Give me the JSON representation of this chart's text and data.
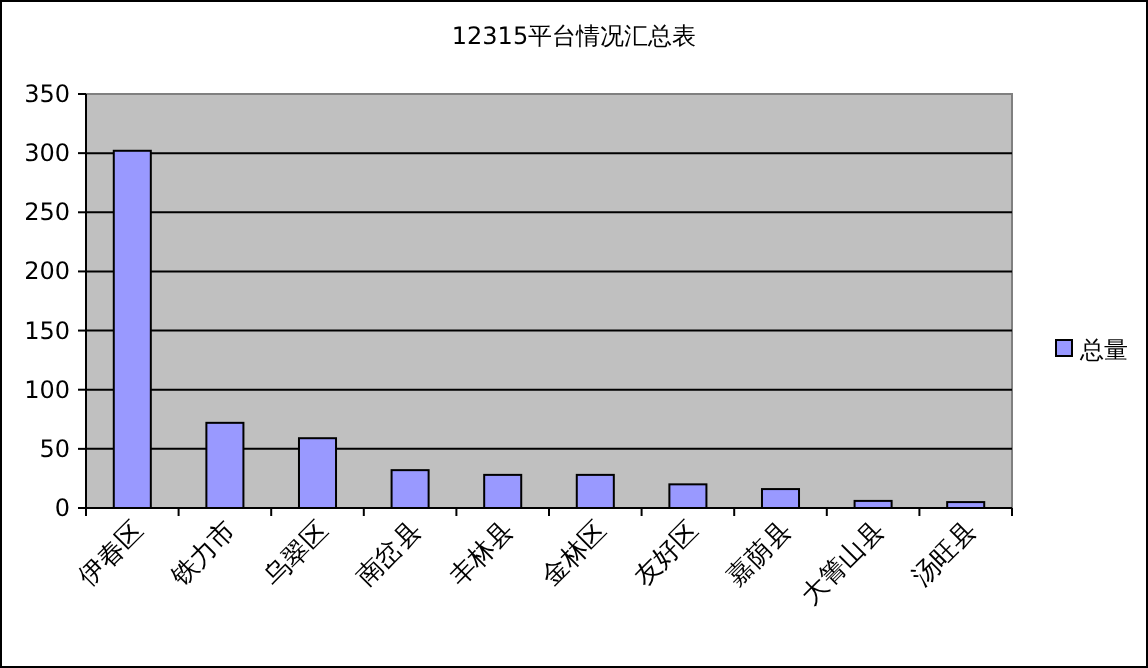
{
  "chart_data": {
    "type": "bar",
    "title": "12315平台情况汇总表",
    "categories": [
      "伊春区",
      "铁力市",
      "乌翠区",
      "南岔县",
      "丰林县",
      "金林区",
      "友好区",
      "嘉荫县",
      "大箐山县",
      "汤旺县"
    ],
    "series": [
      {
        "name": "总量",
        "color": "#9999ff",
        "values": [
          302,
          72,
          59,
          32,
          28,
          28,
          20,
          16,
          6,
          5
        ]
      }
    ],
    "ylim": [
      0,
      350
    ],
    "yticks": [
      0,
      50,
      100,
      150,
      200,
      250,
      300,
      350
    ],
    "grid": "y",
    "legend": "right"
  }
}
